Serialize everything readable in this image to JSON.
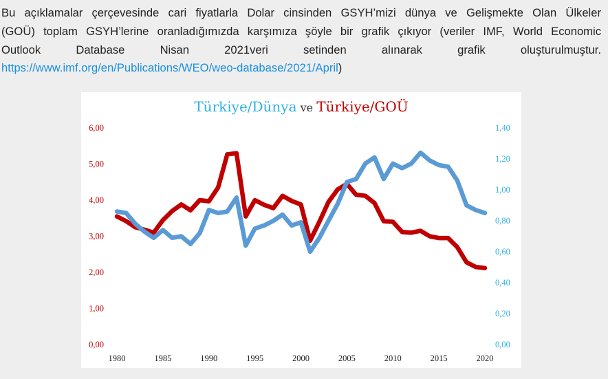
{
  "paragraph": {
    "line1": "Bu açıklamalar çerçevesinde cari fiyatlarla Dolar cinsinden GSYH’mizi dünya ve Gelişmekte Olan Ülkeler",
    "line2": "(GOÜ) toplam GSYH’lerine oranladığımızda karşımıza şöyle bir grafik çıkıyor (veriler IMF, World Economic",
    "line3": "Outlook Database Nisan 2021veri setinden alınarak grafik oluşturulmuştur.",
    "link": "https://www.imf.org/en/Publications/WEO/weo-database/2021/April",
    "link_suffix": ")"
  },
  "colors": {
    "world": "#5b9bd5",
    "goü": "#c00000",
    "title_world": "#2eb0e0",
    "title_mid": "#333333",
    "left_axis": "#c00000",
    "right_axis": "#2eb0e0"
  },
  "chart_data": {
    "type": "line",
    "title_part1": "Türkiye/Dünya",
    "title_part2": " ve ",
    "title_part3": "Türkiye/GOÜ",
    "x": [
      1980,
      1981,
      1982,
      1983,
      1984,
      1985,
      1986,
      1987,
      1988,
      1989,
      1990,
      1991,
      1992,
      1993,
      1994,
      1995,
      1996,
      1997,
      1998,
      1999,
      2000,
      2001,
      2002,
      2003,
      2004,
      2005,
      2006,
      2007,
      2008,
      2009,
      2010,
      2011,
      2012,
      2013,
      2014,
      2015,
      2016,
      2017,
      2018,
      2019,
      2020
    ],
    "series": [
      {
        "name": "Türkiye/GOÜ",
        "axis": "left",
        "values": [
          3.55,
          3.42,
          3.25,
          3.18,
          3.1,
          3.45,
          3.7,
          3.88,
          3.72,
          4.0,
          3.97,
          4.35,
          5.27,
          5.3,
          3.55,
          4.0,
          3.87,
          3.78,
          4.12,
          3.98,
          3.88,
          2.88,
          3.4,
          3.95,
          4.3,
          4.45,
          4.15,
          4.12,
          3.92,
          3.42,
          3.4,
          3.12,
          3.1,
          3.15,
          3.0,
          2.95,
          2.95,
          2.7,
          2.28,
          2.15,
          2.12
        ]
      },
      {
        "name": "Türkiye/Dünya",
        "axis": "right",
        "values": [
          0.86,
          0.85,
          0.78,
          0.73,
          0.69,
          0.74,
          0.69,
          0.7,
          0.65,
          0.72,
          0.87,
          0.85,
          0.86,
          0.95,
          0.64,
          0.75,
          0.77,
          0.8,
          0.84,
          0.77,
          0.79,
          0.6,
          0.69,
          0.8,
          0.91,
          1.05,
          1.07,
          1.17,
          1.21,
          1.07,
          1.17,
          1.14,
          1.17,
          1.24,
          1.19,
          1.16,
          1.15,
          1.06,
          0.9,
          0.87,
          0.85
        ]
      }
    ],
    "left_axis": {
      "min": 0,
      "max": 6,
      "ticks": [
        "0,00",
        "1,00",
        "2,00",
        "3,00",
        "4,00",
        "5,00",
        "6,00"
      ]
    },
    "right_axis": {
      "min": 0,
      "max": 1.4,
      "ticks": [
        "0,00",
        "0,20",
        "0,40",
        "0,60",
        "0,80",
        "1,00",
        "1,20",
        "1,40"
      ]
    },
    "x_ticks": [
      "1980",
      "1985",
      "1990",
      "1995",
      "2000",
      "2005",
      "2010",
      "2015",
      "2020"
    ],
    "grid": false
  }
}
